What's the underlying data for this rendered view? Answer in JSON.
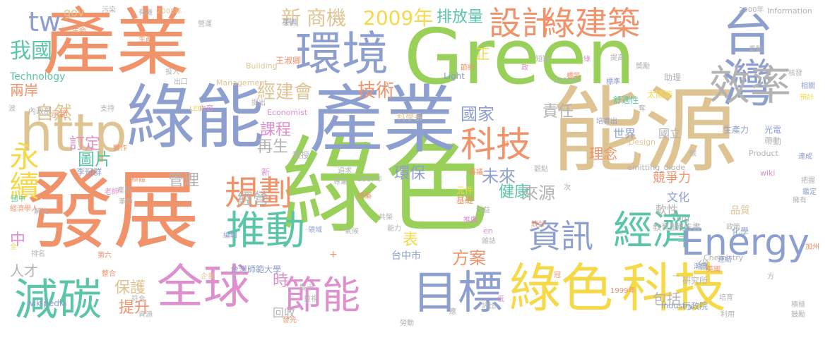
{
  "palette": {
    "salmon": "#f0926a",
    "green": "#98d05a",
    "slate": "#8d9fcf",
    "tan": "#dfc493",
    "pink": "#de8fcd",
    "yellow": "#f6d948",
    "teal": "#5bc5a8",
    "gray": "#b3b3b3"
  },
  "words": [
    {
      "text": "產業",
      "color": "salmon"
    },
    {
      "text": "Green",
      "color": "green"
    },
    {
      "text": "能源",
      "color": "tan"
    },
    {
      "text": "綠色",
      "color": "green"
    },
    {
      "text": "發展",
      "color": "salmon"
    },
    {
      "text": "產業",
      "color": "slate"
    },
    {
      "text": "綠能",
      "color": "slate"
    },
    {
      "text": "環境",
      "color": "slate"
    },
    {
      "text": "台灣",
      "color": "slate"
    },
    {
      "text": "效率",
      "color": "gray"
    },
    {
      "text": "設計",
      "color": "salmon"
    },
    {
      "text": "綠建築",
      "color": "salmon"
    },
    {
      "text": "http",
      "color": "tan"
    },
    {
      "text": "科技",
      "color": "salmon"
    },
    {
      "text": "綠色",
      "color": "yellow"
    },
    {
      "text": "科技",
      "color": "yellow"
    },
    {
      "text": "全球",
      "color": "pink"
    },
    {
      "text": "節能",
      "color": "pink"
    },
    {
      "text": "目標",
      "color": "slate"
    },
    {
      "text": "減碳",
      "color": "teal"
    },
    {
      "text": "推動",
      "color": "teal"
    },
    {
      "text": "經濟",
      "color": "teal"
    },
    {
      "text": "Energy",
      "color": "slate"
    },
    {
      "text": "資訊",
      "color": "slate"
    },
    {
      "text": "規劃",
      "color": "salmon"
    },
    {
      "text": "永續",
      "color": "yellow"
    },
    {
      "text": "tw",
      "color": "slate"
    },
    {
      "text": "我國",
      "color": "teal"
    },
    {
      "text": "新",
      "color": "tan"
    },
    {
      "text": "商機",
      "color": "tan"
    },
    {
      "text": "2009年",
      "color": "yellow"
    },
    {
      "text": "排放量",
      "color": "teal"
    },
    {
      "text": "自然",
      "color": "tan"
    },
    {
      "text": "經建會",
      "color": "tan"
    },
    {
      "text": "技術",
      "color": "salmon"
    },
    {
      "text": "國家",
      "color": "slate"
    },
    {
      "text": "責任",
      "color": "gray"
    },
    {
      "text": "課程",
      "color": "pink"
    },
    {
      "text": "再生",
      "color": "gray"
    },
    {
      "text": "圖片",
      "color": "teal"
    },
    {
      "text": "未來",
      "color": "slate"
    },
    {
      "text": "環保",
      "color": "slate"
    },
    {
      "text": "健康",
      "color": "teal"
    },
    {
      "text": "管理",
      "color": "gray"
    },
    {
      "text": "經營",
      "color": "gray"
    },
    {
      "text": "來源",
      "color": "gray"
    },
    {
      "text": "方案",
      "color": "salmon"
    },
    {
      "text": "保護",
      "color": "tan"
    },
    {
      "text": "提升",
      "color": "salmon"
    },
    {
      "text": "時",
      "color": "pink"
    },
    {
      "text": "表",
      "color": "yellow"
    },
    {
      "text": "包括",
      "color": "gray"
    },
    {
      "text": "正",
      "color": "yellow"
    },
    {
      "text": "訂定",
      "color": "pink"
    },
    {
      "text": "兩岸",
      "color": "salmon"
    },
    {
      "text": "中",
      "color": "pink"
    },
    {
      "text": "人才",
      "color": "gray"
    },
    {
      "text": "理念",
      "color": "salmon"
    },
    {
      "text": "世界",
      "color": "slate"
    },
    {
      "text": "國立",
      "color": "gray"
    },
    {
      "text": "競爭力",
      "color": "salmon"
    },
    {
      "text": "文化",
      "color": "slate"
    },
    {
      "text": "軟性",
      "color": "gray"
    },
    {
      "text": "省",
      "color": "gray"
    },
    {
      "text": "回收",
      "color": "gray"
    },
    {
      "text": "gov",
      "color": "tan"
    },
    {
      "text": "Technology",
      "color": "teal"
    },
    {
      "text": "wikipedia",
      "color": "slate"
    },
    {
      "text": "台灣師範大學",
      "color": "slate"
    },
    {
      "text": "台中市",
      "color": "slate"
    },
    {
      "text": "Economist",
      "color": "pink"
    },
    {
      "text": "Light",
      "color": "slate"
    },
    {
      "text": "Management",
      "color": "tan"
    },
    {
      "text": "Building",
      "color": "tan"
    },
    {
      "text": "Chemistry",
      "color": "gray"
    },
    {
      "text": "Industry",
      "color": "slate"
    },
    {
      "text": "Information",
      "color": "gray"
    },
    {
      "text": "Design",
      "color": "tan"
    },
    {
      "text": "Product",
      "color": "gray"
    },
    {
      "text": "emitting_diode",
      "color": "gray"
    },
    {
      "text": "wiki",
      "color": "pink"
    },
    {
      "text": "org",
      "color": "gray"
    },
    {
      "text": "en",
      "color": "pink"
    },
    {
      "text": "2015年",
      "color": "gray"
    },
    {
      "text": "2000年",
      "color": "gray"
    },
    {
      "text": "2008年",
      "color": "tan"
    },
    {
      "text": "2007年",
      "color": "gray"
    },
    {
      "text": "1999年",
      "color": "salmon"
    },
    {
      "text": "王淑卿",
      "color": "salmon"
    },
    {
      "text": "李冠群",
      "color": "slate"
    },
    {
      "text": "科學系",
      "color": "tan"
    },
    {
      "text": "教授",
      "color": "gray"
    },
    {
      "text": "太陽能",
      "color": "yellow"
    },
    {
      "text": "助理",
      "color": "gray"
    },
    {
      "text": "舒適性",
      "color": "teal"
    },
    {
      "text": "生產力",
      "color": "slate"
    },
    {
      "text": "光電",
      "color": "slate"
    },
    {
      "text": "帶動",
      "color": "gray"
    },
    {
      "text": "報告書",
      "color": "gray"
    },
    {
      "text": "教育部",
      "color": "gray"
    },
    {
      "text": "行政院",
      "color": "slate"
    },
    {
      "text": "研究所",
      "color": "gray"
    },
    {
      "text": "化學",
      "color": "slate"
    },
    {
      "text": "品質",
      "color": "tan"
    },
    {
      "text": "政策",
      "color": "gray"
    },
    {
      "text": "內政部",
      "color": "gray"
    },
    {
      "text": "示範",
      "color": "salmon"
    },
    {
      "text": "支持",
      "color": "gray"
    },
    {
      "text": "內容",
      "color": "pink"
    },
    {
      "text": "培育出",
      "color": "slate"
    },
    {
      "text": "提出",
      "color": "gray"
    },
    {
      "text": "出口",
      "color": "gray"
    },
    {
      "text": "投入",
      "color": "gray"
    },
    {
      "text": "生產",
      "color": "salmon"
    },
    {
      "text": "生命",
      "color": "salmon"
    },
    {
      "text": "污染",
      "color": "gray"
    },
    {
      "text": "有機",
      "color": "gray"
    },
    {
      "text": "美國",
      "color": "slate"
    },
    {
      "text": "英國",
      "color": "salmon"
    },
    {
      "text": "產品",
      "color": "gray"
    },
    {
      "text": "實作",
      "color": "salmon"
    },
    {
      "text": "二極體",
      "color": "salmon"
    },
    {
      "text": "國中",
      "color": "teal"
    },
    {
      "text": "經濟學人",
      "color": "salmon"
    },
    {
      "text": "老師",
      "color": "pink"
    },
    {
      "text": "解決",
      "color": "gray"
    },
    {
      "text": "排名",
      "color": "gray"
    },
    {
      "text": "全",
      "color": "yellow"
    },
    {
      "text": "第六",
      "color": "salmon"
    },
    {
      "text": "整合",
      "color": "salmon"
    },
    {
      "text": "符合",
      "color": "gray"
    },
    {
      "text": "資源",
      "color": "gray"
    },
    {
      "text": "企業",
      "color": "tan"
    },
    {
      "text": "發光",
      "color": "salmon"
    },
    {
      "text": "雙十",
      "color": "gray"
    },
    {
      "text": "重視",
      "color": "gray"
    },
    {
      "text": "勞動",
      "color": "gray"
    },
    {
      "text": "氣候",
      "color": "gray"
    },
    {
      "text": "能力",
      "color": "gray"
    },
    {
      "text": "共榮",
      "color": "gray"
    },
    {
      "text": "專業",
      "color": "gray"
    },
    {
      "text": "追求",
      "color": "gray"
    },
    {
      "text": "建築",
      "color": "salmon"
    },
    {
      "text": "推廣",
      "color": "pink"
    },
    {
      "text": "利益",
      "color": "gray"
    },
    {
      "text": "元件",
      "color": "yellow"
    },
    {
      "text": "基礎",
      "color": "salmon"
    },
    {
      "text": "領域",
      "color": "slate"
    },
    {
      "text": "編輯",
      "color": "slate"
    },
    {
      "text": "革命",
      "color": "gray"
    },
    {
      "text": "觀點",
      "color": "gray"
    },
    {
      "text": "統計",
      "color": "salmon"
    },
    {
      "text": "雜誌",
      "color": "gray"
    },
    {
      "text": "短缺",
      "color": "gray"
    },
    {
      "text": "提高",
      "color": "gray"
    },
    {
      "text": "標準",
      "color": "slate"
    },
    {
      "text": "標竿",
      "color": "salmon"
    },
    {
      "text": "預計",
      "color": "yellow"
    },
    {
      "text": "相關",
      "color": "slate"
    },
    {
      "text": "核發",
      "color": "gray"
    },
    {
      "text": "達成",
      "color": "slate"
    },
    {
      "text": "鑑定",
      "color": "slate"
    },
    {
      "text": "擁有",
      "color": "gray"
    },
    {
      "text": "把握",
      "color": "gray"
    },
    {
      "text": "加州",
      "color": "salmon"
    },
    {
      "text": "鼓勵",
      "color": "gray"
    },
    {
      "text": "利用",
      "color": "gray"
    },
    {
      "text": "培育",
      "color": "gray"
    },
    {
      "text": "評比",
      "color": "gray"
    },
    {
      "text": "潮流",
      "color": "slate"
    },
    {
      "text": "低",
      "color": "pink"
    },
    {
      "text": "冠",
      "color": "salmon"
    },
    {
      "text": "審議",
      "color": "salmon"
    },
    {
      "text": "次",
      "color": "gray"
    },
    {
      "text": "應",
      "color": "gray"
    },
    {
      "text": "積極",
      "color": "gray"
    },
    {
      "text": "連結",
      "color": "slate"
    },
    {
      "text": "重點",
      "color": "gray"
    },
    {
      "text": "獎勵",
      "color": "gray"
    },
    {
      "text": "營運",
      "color": "gray"
    },
    {
      "text": "波",
      "color": "gray"
    },
    {
      "text": "節約",
      "color": "salmon"
    },
    {
      "text": "LED",
      "color": "yellow"
    },
    {
      "text": "方",
      "color": "gray"
    },
    {
      "text": "三",
      "color": "gray"
    },
    {
      "text": "一",
      "color": "gray"
    },
    {
      "text": "綠",
      "color": "pink"
    },
    {
      "text": "創",
      "color": "salmon"
    },
    {
      "text": "碳",
      "color": "gray"
    },
    {
      "text": "奪",
      "color": "gray"
    },
    {
      "text": "政",
      "color": "pink"
    },
    {
      "text": "+",
      "color": "salmon"
    },
    {
      "text": "新",
      "color": "pink"
    }
  ]
}
